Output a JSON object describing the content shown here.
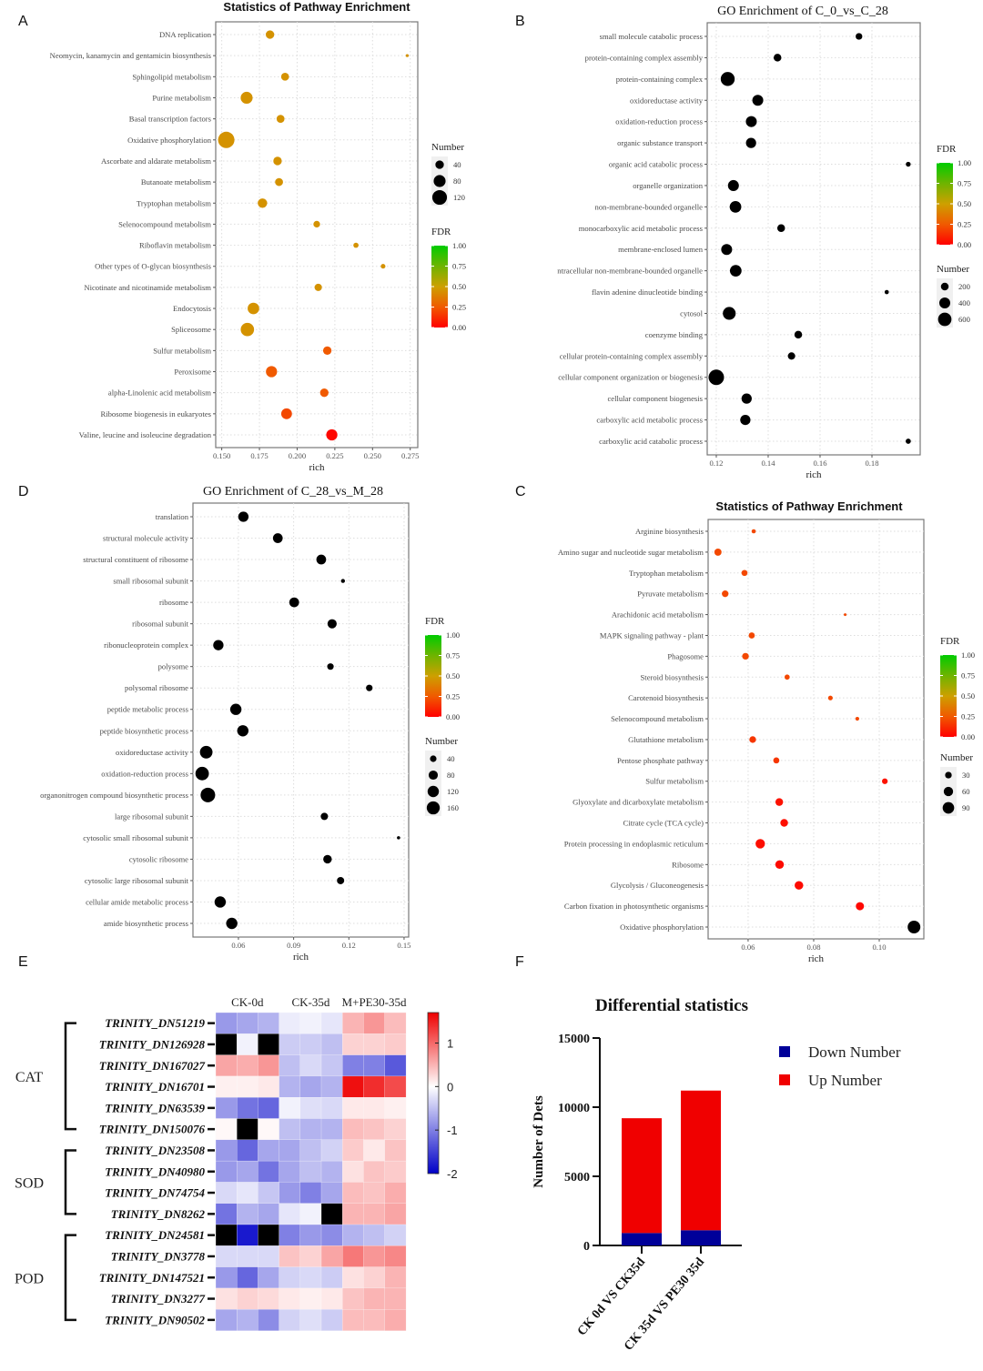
{
  "panel_letters": [
    "A",
    "B",
    "D",
    "C",
    "E",
    "F"
  ],
  "chart_data": [
    {
      "type": "scatter",
      "title": "Statistics of Pathway Enrichment",
      "xlabel": "rich",
      "xlim": [
        0.146,
        0.28
      ],
      "xticks": [
        0.15,
        0.175,
        0.2,
        0.225,
        0.25,
        0.275
      ],
      "xtick_labels": [
        "0.150",
        "0.175",
        "0.200",
        "0.225",
        "0.250",
        "0.275"
      ],
      "categories": [
        "DNA replication",
        "Neomycin, kanamycin and gentamicin biosynthesis",
        "Sphingolipid metabolism",
        "Purine metabolism",
        "Basal transcription factors",
        "Oxidative phosphorylation",
        "Ascorbate and aldarate metabolism",
        "Butanoate metabolism",
        "Tryptophan metabolism",
        "Selenocompound metabolism",
        "Riboflavin metabolism",
        "Other types of O-glycan biosynthesis",
        "Nicotinate and nicotinamide metabolism",
        "Endocytosis",
        "Spliceosome",
        "Sulfur metabolism",
        "Peroxisome",
        "alpha-Linolenic acid metabolism",
        "Ribosome biogenesis in eukaryotes",
        "Valine, leucine and isoleucine degradation"
      ],
      "rich": [
        0.182,
        0.273,
        0.192,
        0.1665,
        0.189,
        0.153,
        0.187,
        0.188,
        0.177,
        0.213,
        0.239,
        0.257,
        0.214,
        0.171,
        0.167,
        0.22,
        0.183,
        0.218,
        0.193,
        0.223
      ],
      "number": [
        40,
        5,
        35,
        80,
        35,
        150,
        40,
        35,
        50,
        25,
        15,
        12,
        30,
        75,
        100,
        40,
        70,
        40,
        65,
        70
      ],
      "fdr": [
        0.45,
        0.45,
        0.45,
        0.45,
        0.45,
        0.45,
        0.45,
        0.45,
        0.45,
        0.45,
        0.45,
        0.45,
        0.45,
        0.45,
        0.45,
        0.25,
        0.25,
        0.25,
        0.2,
        0.02
      ],
      "legend_number_title": "Number",
      "legend_number_values": [
        40,
        80,
        120
      ],
      "legend_number_labels": [
        "40",
        "80",
        "120"
      ],
      "legend_fdr_title": "FDR",
      "legend_fdr_labels": [
        "1.00",
        "0.75",
        "0.50",
        "0.25",
        "0.00"
      ],
      "grid": true
    },
    {
      "type": "scatter",
      "title": "GO Enrichment of C_0_vs_C_28",
      "xlabel": "rich",
      "xlim": [
        0.1165,
        0.1986
      ],
      "xticks": [
        0.12,
        0.14,
        0.16,
        0.18
      ],
      "xtick_labels": [
        "0.12",
        "0.14",
        "0.16",
        "0.18"
      ],
      "categories": [
        "small molecule catabolic process",
        "protein-containing complex assembly",
        "protein-containing complex",
        "oxidoreductase activity",
        "oxidation-reduction process",
        "organic substance transport",
        "organic acid catabolic process",
        "organelle organization",
        "non-membrane-bounded organelle",
        "monocarboxylic acid metabolic process",
        "membrane-enclosed lumen",
        "ntracellular non-membrane-bounded organelle",
        "flavin adenine dinucleotide binding",
        "cytosol",
        "coenzyme binding",
        "cellular protein-containing complex assembly",
        "cellular component organization or biogenesis",
        "cellular component biogenesis",
        "carboxylic acid metabolic process",
        "carboxylic acid catabolic process"
      ],
      "rich": [
        0.175,
        0.1436,
        0.1244,
        0.136,
        0.1335,
        0.1334,
        0.194,
        0.1266,
        0.1274,
        0.145,
        0.124,
        0.1275,
        0.1857,
        0.125,
        0.1516,
        0.149,
        0.12,
        0.1317,
        0.1312,
        0.194
      ],
      "number": [
        150,
        200,
        650,
        400,
        400,
        350,
        80,
        400,
        450,
        200,
        400,
        450,
        60,
        550,
        200,
        180,
        800,
        350,
        350,
        90
      ],
      "fdr": [
        0,
        0,
        0,
        0,
        0,
        0,
        0,
        0,
        0,
        0,
        0,
        0,
        0,
        0,
        0,
        0,
        0,
        0,
        0,
        0
      ],
      "legend_number_title": "Number",
      "legend_number_values": [
        200,
        400,
        600
      ],
      "legend_number_labels": [
        "200",
        "400",
        "600"
      ],
      "legend_fdr_title": "FDR",
      "legend_fdr_labels": [
        "1.00",
        "0.75",
        "0.50",
        "0.25",
        "0.00"
      ],
      "grid": true
    },
    {
      "type": "scatter",
      "title": "GO Enrichment of C_28_vs_M_28",
      "xlabel": "rich",
      "xlim": [
        0.0353,
        0.1525
      ],
      "xticks": [
        0.06,
        0.09,
        0.12,
        0.15
      ],
      "xtick_labels": [
        "0.06",
        "0.09",
        "0.12",
        "0.15"
      ],
      "categories": [
        "translation",
        "structural molecule activity",
        "structural constituent of ribosome",
        "small ribosomal subunit",
        "ribosome",
        "ribosomal subunit",
        "ribonucleoprotein complex",
        "polysome",
        "polysomal ribosome",
        "peptide metabolic process",
        "peptide biosynthetic process",
        "oxidoreductase activity",
        "oxidation-reduction process",
        "organonitrogen compound biosynthetic process",
        "large ribosomal subunit",
        "cytosolic small ribosomal subunit",
        "cytosolic ribosome",
        "cytosolic large ribosomal subunit",
        "cellular amide metabolic process",
        "amide biosynthetic process"
      ],
      "rich": [
        0.0627,
        0.0814,
        0.105,
        0.1168,
        0.0903,
        0.1109,
        0.0491,
        0.11,
        0.1311,
        0.0586,
        0.0624,
        0.0425,
        0.0403,
        0.0434,
        0.1067,
        0.147,
        0.1084,
        0.1155,
        0.0501,
        0.0564
      ],
      "number": [
        100,
        90,
        90,
        15,
        90,
        80,
        100,
        40,
        40,
        120,
        120,
        150,
        170,
        200,
        50,
        10,
        70,
        50,
        120,
        120
      ],
      "fdr": [
        0,
        0,
        0,
        0,
        0,
        0,
        0,
        0,
        0,
        0,
        0,
        0,
        0,
        0,
        0,
        0,
        0,
        0,
        0,
        0
      ],
      "legend_number_title": "Number",
      "legend_number_values": [
        40,
        80,
        120,
        160
      ],
      "legend_number_labels": [
        "40",
        "80",
        "120",
        "160"
      ],
      "legend_fdr_title": "FDR",
      "legend_fdr_labels": [
        "1.00",
        "0.75",
        "0.50",
        "0.25",
        "0.00"
      ],
      "grid": true
    },
    {
      "type": "scatter",
      "title": "Statistics of Pathway Enrichment",
      "xlabel": "rich",
      "xlim": [
        0.0478,
        0.1136
      ],
      "xticks": [
        0.06,
        0.08,
        0.1
      ],
      "xtick_labels": [
        "0.06",
        "0.08",
        "0.10"
      ],
      "categories": [
        "Arginine biosynthesis",
        "Amino sugar and nucleotide sugar metabolism",
        "Tryptophan metabolism",
        "Pyruvate metabolism",
        "Arachidonic acid metabolism",
        "MAPK signaling pathway - plant",
        "Phagosome",
        "Steroid biosynthesis",
        "Carotenoid biosynthesis",
        "Selenocompound metabolism",
        "Glutathione metabolism",
        "Pentose phosphate pathway",
        "Sulfur metabolism",
        "Glyoxylate and dicarboxylate metabolism",
        "Citrate cycle (TCA cycle)",
        "Protein processing in endoplasmic reticulum",
        "Ribosome",
        "Glycolysis / Gluconeogenesis",
        "Carbon fixation in photosynthetic organisms",
        "Oxidative phosphorylation"
      ],
      "rich": [
        0.0617,
        0.0508,
        0.0589,
        0.053,
        0.0896,
        0.0611,
        0.0592,
        0.0719,
        0.0851,
        0.0933,
        0.0614,
        0.0686,
        0.1017,
        0.0695,
        0.071,
        0.0637,
        0.0696,
        0.0755,
        0.0941,
        0.1106
      ],
      "number": [
        12,
        35,
        25,
        30,
        5,
        25,
        30,
        18,
        15,
        10,
        30,
        25,
        22,
        40,
        40,
        60,
        50,
        50,
        45,
        110
      ],
      "fdr": [
        0.2,
        0.2,
        0.2,
        0.2,
        0.2,
        0.2,
        0.2,
        0.2,
        0.2,
        0.2,
        0.15,
        0.15,
        0.05,
        0.05,
        0.04,
        0.04,
        0.03,
        0.03,
        0.02,
        0.0
      ],
      "legend_number_title": "Number",
      "legend_number_values": [
        30,
        60,
        90
      ],
      "legend_number_labels": [
        "30",
        "60",
        "90"
      ],
      "legend_fdr_title": "FDR",
      "legend_fdr_labels": [
        "1.00",
        "0.75",
        "0.50",
        "0.25",
        "0.00"
      ],
      "grid": true
    },
    {
      "type": "heatmap",
      "column_groups": [
        "CK-0d",
        "CK-35d",
        "M+PE30-35d"
      ],
      "replicates_per_group": 3,
      "rows": [
        "TRINITY_DN51219",
        "TRINITY_DN126928",
        "TRINITY_DN167027",
        "TRINITY_DN16701",
        "TRINITY_DN63539",
        "TRINITY_DN150076",
        "TRINITY_DN23508",
        "TRINITY_DN40980",
        "TRINITY_DN74754",
        "TRINITY_DN8262",
        "TRINITY_DN24581",
        "TRINITY_DN3778",
        "TRINITY_DN147521",
        "TRINITY_DN3277",
        "TRINITY_DN90502"
      ],
      "row_groups": [
        {
          "name": "CAT",
          "first": 0,
          "last": 5
        },
        {
          "name": "SOD",
          "first": 6,
          "last": 9
        },
        {
          "name": "POD",
          "first": 10,
          "last": 14
        }
      ],
      "values": [
        [
          -0.8,
          -0.7,
          -0.6,
          -0.15,
          -0.1,
          -0.2,
          0.5,
          0.7,
          0.45
        ],
        [
          0,
          -0.1,
          0,
          -0.4,
          -0.4,
          -0.5,
          0.3,
          0.3,
          0.35
        ],
        [
          0.6,
          0.55,
          0.7,
          -0.5,
          -0.3,
          -0.45,
          -1.0,
          -1.0,
          -1.3
        ],
        [
          0.1,
          0.1,
          0.15,
          -0.6,
          -0.7,
          -0.6,
          1.6,
          1.4,
          1.2
        ],
        [
          -0.8,
          -1.1,
          -1.2,
          -0.1,
          -0.25,
          -0.3,
          0.15,
          0.15,
          0.1
        ],
        [
          0.05,
          0,
          0.05,
          -0.5,
          -0.6,
          -0.6,
          0.45,
          0.4,
          0.3
        ],
        [
          -0.8,
          -1.2,
          -0.7,
          -0.7,
          -0.5,
          -0.35,
          0.35,
          0.15,
          0.4
        ],
        [
          -0.8,
          -0.7,
          -1.1,
          -0.7,
          -0.5,
          -0.6,
          0.2,
          0.4,
          0.35
        ],
        [
          -0.3,
          -0.2,
          -0.45,
          -0.8,
          -1.0,
          -0.7,
          0.45,
          0.4,
          0.55
        ],
        [
          -1.1,
          -0.6,
          -0.7,
          -0.2,
          -0.1,
          0,
          0.5,
          0.5,
          0.6
        ],
        [
          -2,
          -1.8,
          -2,
          -1.0,
          -0.8,
          -0.9,
          -0.6,
          -0.5,
          -0.35
        ],
        [
          -0.3,
          -0.3,
          -0.3,
          0.4,
          0.3,
          0.6,
          0.9,
          0.7,
          0.8
        ],
        [
          -0.8,
          -1.2,
          -0.7,
          -0.35,
          -0.3,
          -0.4,
          0.2,
          0.3,
          0.5
        ],
        [
          0.2,
          0.3,
          0.25,
          0.15,
          0.1,
          0.15,
          0.4,
          0.5,
          0.5
        ],
        [
          -0.7,
          -0.6,
          -0.9,
          -0.35,
          -0.25,
          -0.4,
          0.45,
          0.45,
          0.55
        ]
      ],
      "color_range": [
        -2,
        1.7
      ],
      "colorbar_ticks": [
        1,
        0,
        -1,
        -2
      ],
      "colorbar_labels": [
        "1",
        "0",
        "-1",
        "-2"
      ],
      "colors": {
        "low": "#0000c8",
        "mid": "#ffffff",
        "high": "#ee0000"
      }
    },
    {
      "type": "bar",
      "stacked": true,
      "title": "Differential statistics",
      "ylabel": "Number of Dets",
      "categories": [
        "CK 0d VS CK35d",
        "CK 35d VS PE30 35d"
      ],
      "series": [
        {
          "name": "Down Number",
          "values": [
            900,
            1100
          ],
          "color": "#000099"
        },
        {
          "name": "Up Number",
          "values": [
            8300,
            10100
          ],
          "color": "#f00000"
        }
      ],
      "ylim": [
        0,
        15000
      ],
      "yticks": [
        0,
        5000,
        10000,
        15000
      ],
      "ytick_labels": [
        "0",
        "5000",
        "10000",
        "15000"
      ],
      "legend": "right"
    }
  ]
}
